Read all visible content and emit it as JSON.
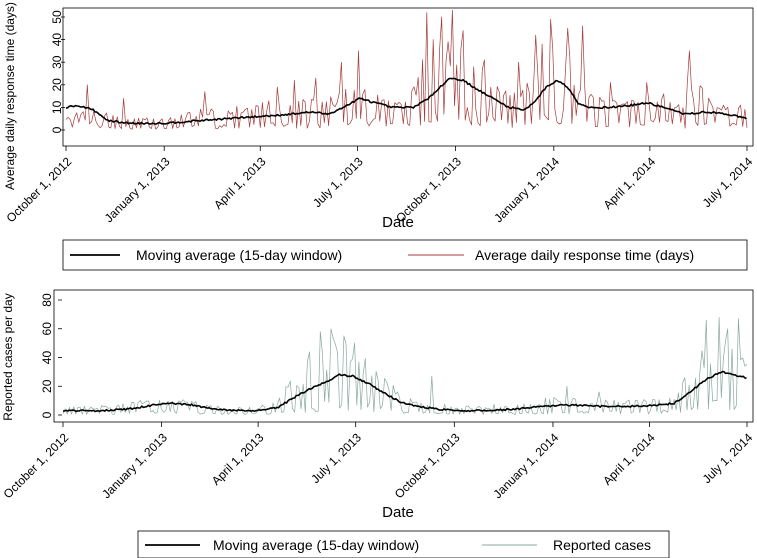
{
  "chart_data": [
    {
      "type": "line",
      "title": "",
      "xlabel": "Date",
      "ylabel": "Average daily response time (days)",
      "ylim": [
        0,
        55
      ],
      "yticks": [
        "0",
        "10",
        "20",
        "30",
        "40",
        "50"
      ],
      "x_start": "October 1, 2012",
      "x_end": "July 1, 2014",
      "xticks": [
        {
          "label": "October 1, 2012",
          "day": 0
        },
        {
          "label": "January 1, 2013",
          "day": 92
        },
        {
          "label": "April 1, 2013",
          "day": 182
        },
        {
          "label": "July 1, 2013",
          "day": 273
        },
        {
          "label": "October 1, 2013",
          "day": 365
        },
        {
          "label": "January 1, 2014",
          "day": 457
        },
        {
          "label": "April 1, 2014",
          "day": 547
        },
        {
          "label": "July 1, 2014",
          "day": 638
        }
      ],
      "series": [
        {
          "name": "Moving average (15-day window)",
          "color": "#000000",
          "points": [
            [
              0,
              10
            ],
            [
              10,
              11
            ],
            [
              25,
              9
            ],
            [
              40,
              4
            ],
            [
              60,
              3
            ],
            [
              92,
              3
            ],
            [
              120,
              4
            ],
            [
              150,
              5
            ],
            [
              182,
              6
            ],
            [
              210,
              7
            ],
            [
              230,
              8
            ],
            [
              245,
              7
            ],
            [
              260,
              10
            ],
            [
              275,
              14
            ],
            [
              290,
              12
            ],
            [
              305,
              10
            ],
            [
              325,
              10
            ],
            [
              340,
              14
            ],
            [
              350,
              19
            ],
            [
              360,
              23
            ],
            [
              372,
              22
            ],
            [
              385,
              18
            ],
            [
              400,
              14
            ],
            [
              415,
              10
            ],
            [
              430,
              9
            ],
            [
              440,
              13
            ],
            [
              450,
              19
            ],
            [
              460,
              22
            ],
            [
              470,
              19
            ],
            [
              480,
              12
            ],
            [
              490,
              10
            ],
            [
              510,
              10
            ],
            [
              530,
              11
            ],
            [
              545,
              12
            ],
            [
              560,
              10
            ],
            [
              580,
              7
            ],
            [
              600,
              8
            ],
            [
              620,
              7
            ],
            [
              638,
              5
            ]
          ]
        },
        {
          "name": "Average daily response time (days)",
          "color": "#a83a3a",
          "envelope": [
            [
              0,
              6
            ],
            [
              30,
              8
            ],
            [
              60,
              5
            ],
            [
              92,
              5
            ],
            [
              120,
              8
            ],
            [
              150,
              10
            ],
            [
              182,
              12
            ],
            [
              220,
              13
            ],
            [
              250,
              14
            ],
            [
              270,
              20
            ],
            [
              290,
              16
            ],
            [
              320,
              12
            ],
            [
              335,
              30
            ],
            [
              350,
              42
            ],
            [
              365,
              38
            ],
            [
              380,
              30
            ],
            [
              400,
              22
            ],
            [
              420,
              18
            ],
            [
              440,
              28
            ],
            [
              455,
              38
            ],
            [
              470,
              32
            ],
            [
              490,
              15
            ],
            [
              520,
              12
            ],
            [
              545,
              14
            ],
            [
              570,
              12
            ],
            [
              590,
              22
            ],
            [
              610,
              12
            ],
            [
              638,
              10
            ]
          ],
          "spikes": [
            {
              "day": 20,
              "value": 20
            },
            {
              "day": 55,
              "value": 14
            },
            {
              "day": 130,
              "value": 17
            },
            {
              "day": 198,
              "value": 19
            },
            {
              "day": 215,
              "value": 22
            },
            {
              "day": 235,
              "value": 23
            },
            {
              "day": 258,
              "value": 30
            },
            {
              "day": 275,
              "value": 35
            },
            {
              "day": 338,
              "value": 52
            },
            {
              "day": 345,
              "value": 40
            },
            {
              "day": 352,
              "value": 50
            },
            {
              "day": 362,
              "value": 53
            },
            {
              "day": 372,
              "value": 44
            },
            {
              "day": 392,
              "value": 31
            },
            {
              "day": 425,
              "value": 30
            },
            {
              "day": 440,
              "value": 42
            },
            {
              "day": 447,
              "value": 38
            },
            {
              "day": 455,
              "value": 49
            },
            {
              "day": 470,
              "value": 45
            },
            {
              "day": 485,
              "value": 46
            },
            {
              "day": 510,
              "value": 21
            },
            {
              "day": 545,
              "value": 21
            },
            {
              "day": 560,
              "value": 16
            },
            {
              "day": 585,
              "value": 35
            },
            {
              "day": 605,
              "value": 12
            }
          ]
        }
      ],
      "legend": {
        "placement": "bottom",
        "items": [
          {
            "label": "Moving average (15-day window)",
            "color": "#000000"
          },
          {
            "label": "Average daily response time (days)",
            "color": "#a83a3a"
          }
        ]
      }
    },
    {
      "type": "line",
      "title": "",
      "xlabel": "Date",
      "ylabel": "Reported cases per day",
      "ylim": [
        0,
        80
      ],
      "yticks": [
        "0",
        "20",
        "40",
        "60",
        "80"
      ],
      "x_start": "October 1, 2012",
      "x_end": "July 1, 2014",
      "xticks": [
        {
          "label": "October 1, 2012",
          "day": 0
        },
        {
          "label": "January 1, 2013",
          "day": 92
        },
        {
          "label": "April 1, 2013",
          "day": 182
        },
        {
          "label": "July 1, 2013",
          "day": 273
        },
        {
          "label": "October 1, 2013",
          "day": 365
        },
        {
          "label": "January 1, 2014",
          "day": 457
        },
        {
          "label": "April 1, 2014",
          "day": 547
        },
        {
          "label": "July 1, 2014",
          "day": 638
        }
      ],
      "series": [
        {
          "name": "Moving average (15-day window)",
          "color": "#000000",
          "points": [
            [
              0,
              3
            ],
            [
              30,
              3
            ],
            [
              60,
              4
            ],
            [
              85,
              7
            ],
            [
              100,
              8
            ],
            [
              120,
              7
            ],
            [
              140,
              4
            ],
            [
              165,
              3
            ],
            [
              182,
              3
            ],
            [
              200,
              5
            ],
            [
              215,
              12
            ],
            [
              230,
              18
            ],
            [
              245,
              23
            ],
            [
              258,
              28
            ],
            [
              270,
              27
            ],
            [
              285,
              22
            ],
            [
              300,
              15
            ],
            [
              315,
              9
            ],
            [
              330,
              6
            ],
            [
              350,
              4
            ],
            [
              365,
              3
            ],
            [
              390,
              3
            ],
            [
              420,
              4
            ],
            [
              450,
              6
            ],
            [
              470,
              7
            ],
            [
              500,
              6
            ],
            [
              530,
              6
            ],
            [
              555,
              7
            ],
            [
              570,
              8
            ],
            [
              585,
              16
            ],
            [
              600,
              25
            ],
            [
              615,
              30
            ],
            [
              625,
              28
            ],
            [
              638,
              26
            ]
          ]
        },
        {
          "name": "Reported cases",
          "color": "#8aa89e",
          "envelope": [
            [
              0,
              6
            ],
            [
              30,
              6
            ],
            [
              60,
              8
            ],
            [
              85,
              11
            ],
            [
              100,
              12
            ],
            [
              120,
              10
            ],
            [
              140,
              6
            ],
            [
              165,
              5
            ],
            [
              182,
              6
            ],
            [
              200,
              10
            ],
            [
              215,
              25
            ],
            [
              230,
              40
            ],
            [
              245,
              48
            ],
            [
              258,
              52
            ],
            [
              270,
              45
            ],
            [
              285,
              38
            ],
            [
              300,
              25
            ],
            [
              315,
              14
            ],
            [
              330,
              9
            ],
            [
              350,
              8
            ],
            [
              365,
              6
            ],
            [
              390,
              6
            ],
            [
              420,
              8
            ],
            [
              450,
              11
            ],
            [
              470,
              12
            ],
            [
              500,
              10
            ],
            [
              530,
              10
            ],
            [
              555,
              11
            ],
            [
              570,
              13
            ],
            [
              585,
              30
            ],
            [
              600,
              50
            ],
            [
              615,
              58
            ],
            [
              625,
              50
            ],
            [
              638,
              35
            ]
          ],
          "spikes": [
            {
              "day": 240,
              "value": 58
            },
            {
              "day": 250,
              "value": 60
            },
            {
              "day": 262,
              "value": 55
            },
            {
              "day": 272,
              "value": 50
            },
            {
              "day": 345,
              "value": 27
            },
            {
              "day": 470,
              "value": 20
            },
            {
              "day": 500,
              "value": 16
            },
            {
              "day": 600,
              "value": 66
            },
            {
              "day": 612,
              "value": 68
            },
            {
              "day": 620,
              "value": 60
            },
            {
              "day": 630,
              "value": 67
            }
          ]
        }
      ],
      "legend": {
        "placement": "bottom",
        "items": [
          {
            "label": "Moving average (15-day window)",
            "color": "#000000"
          },
          {
            "label": "Reported cases",
            "color": "#8aa89e"
          }
        ]
      }
    }
  ]
}
